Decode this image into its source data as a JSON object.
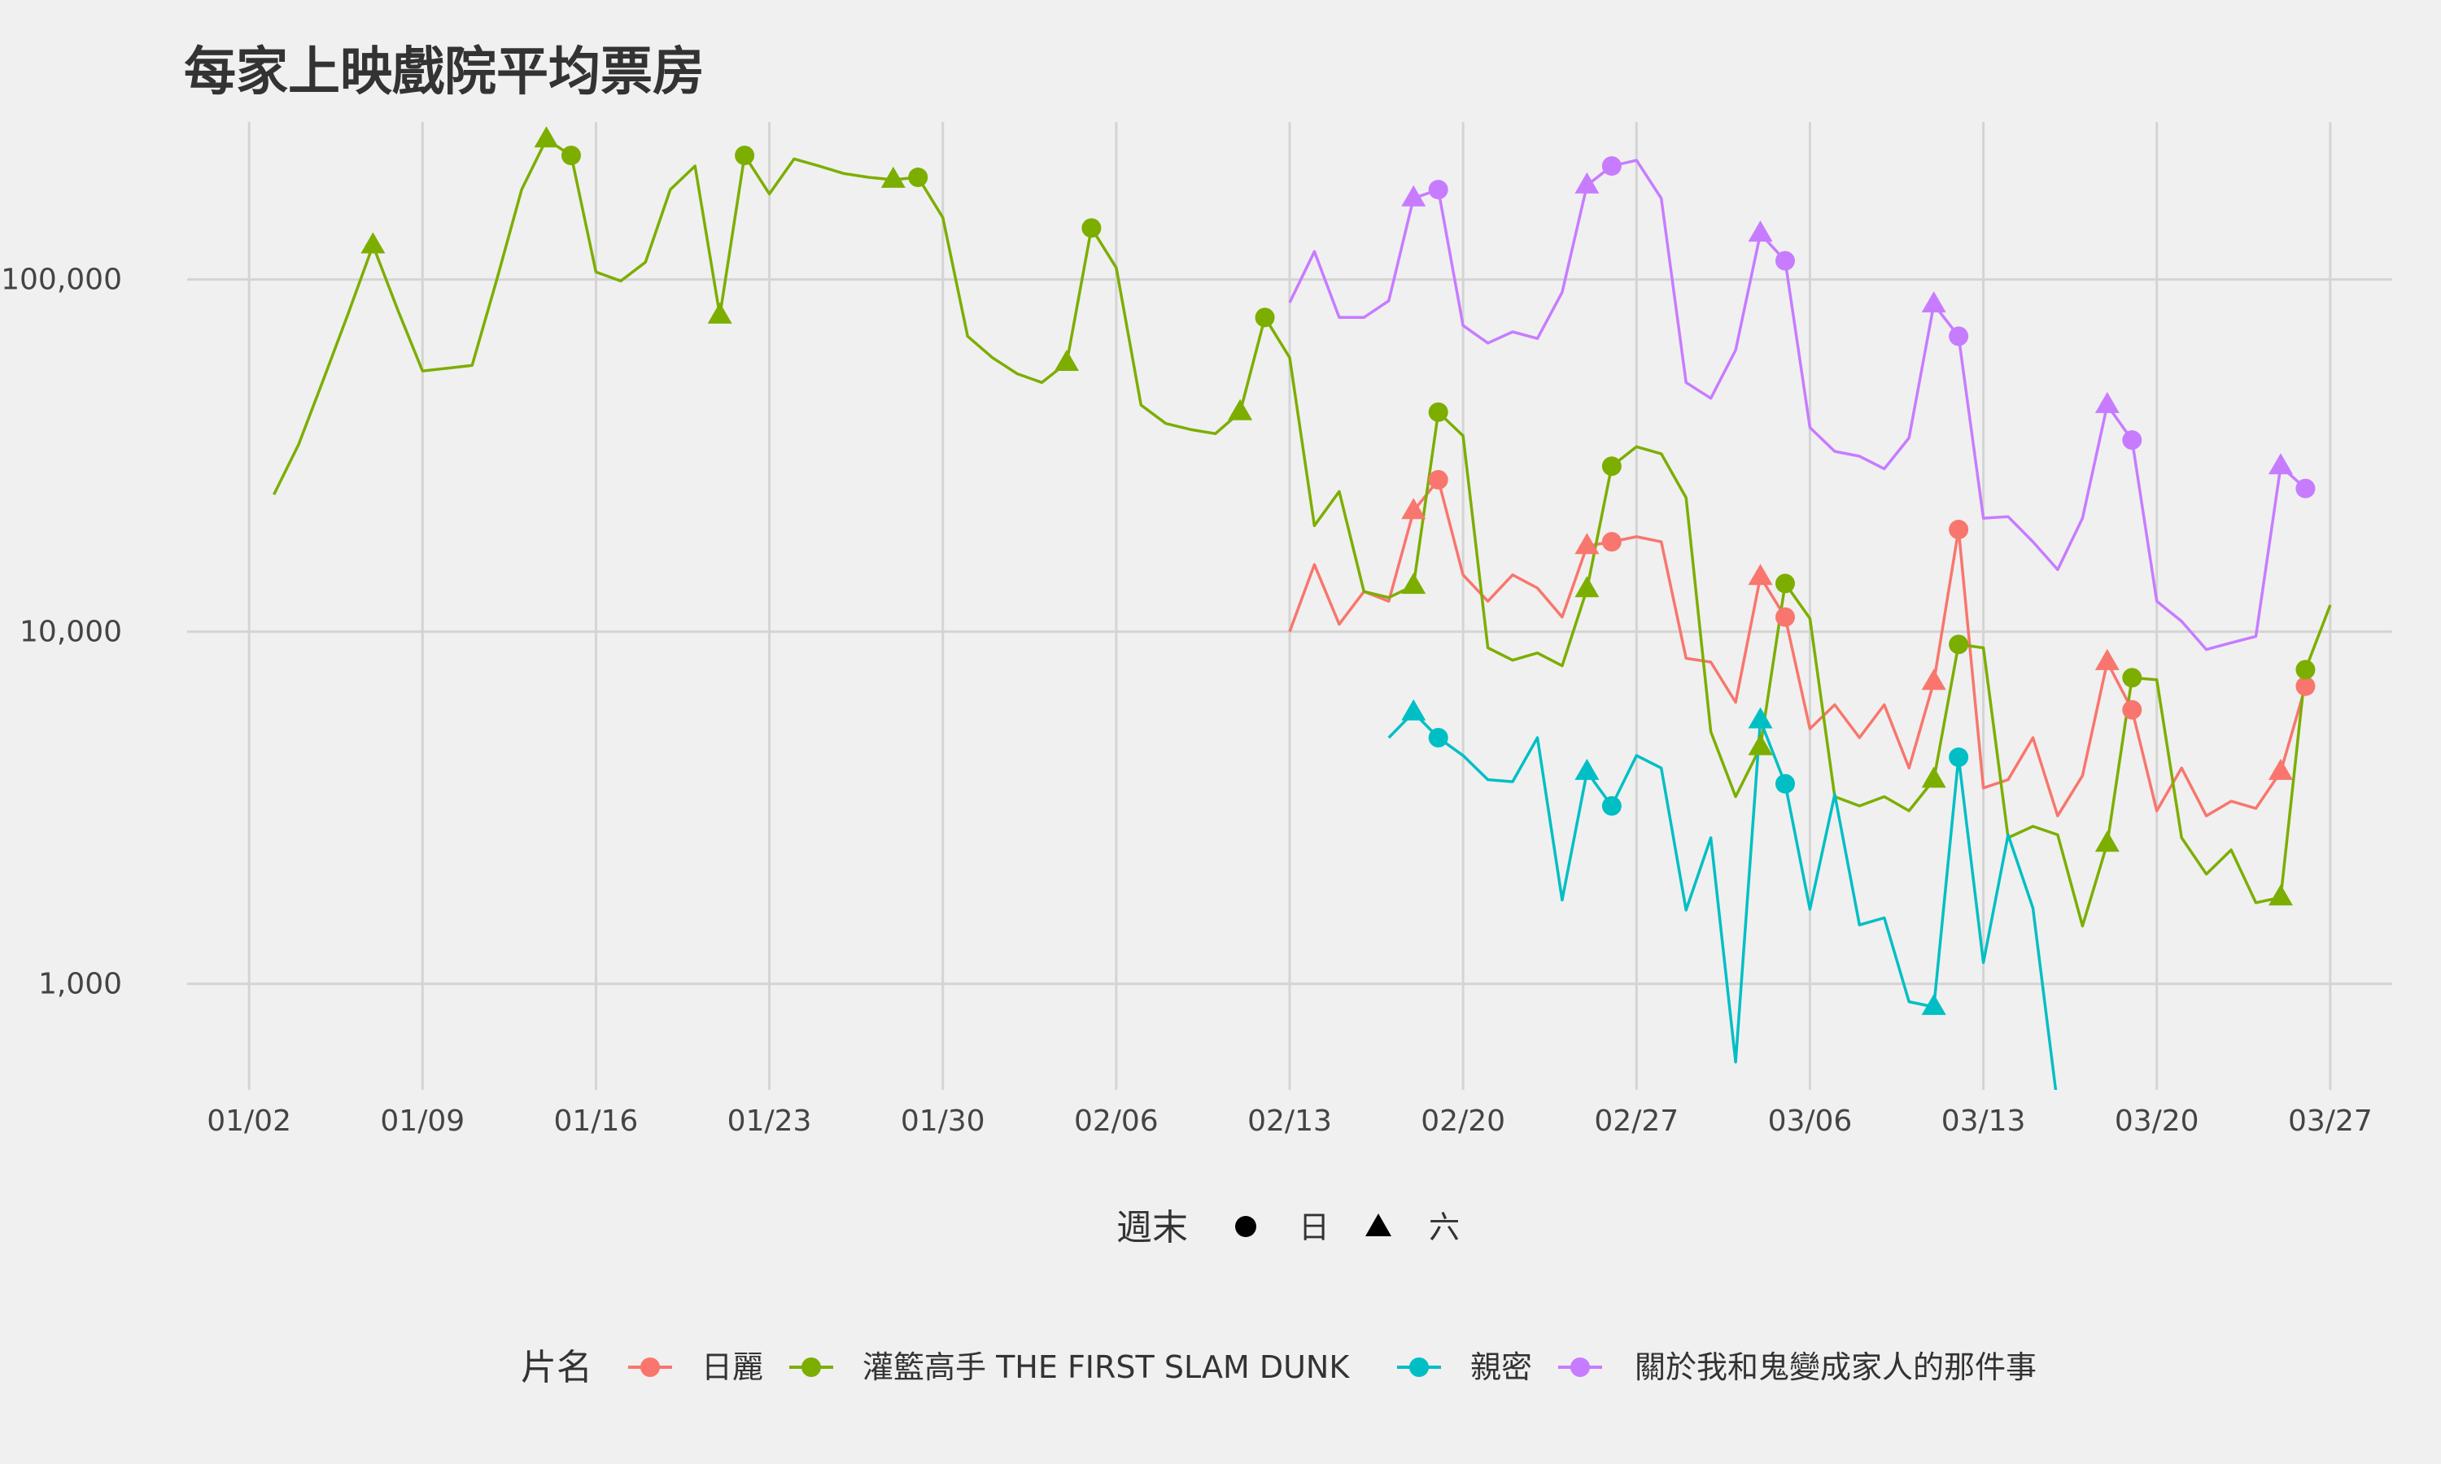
{
  "chart_data": {
    "type": "line",
    "title": "每家上映戲院平均票房",
    "xlabel": "",
    "ylabel": "",
    "y_scale": "log10",
    "ylim": [
      500,
      280000
    ],
    "yticks": [
      1000,
      10000,
      100000
    ],
    "ytick_labels": [
      "1,000",
      "10,000",
      "100,000"
    ],
    "x_tick_days": [
      0,
      7,
      14,
      21,
      28,
      35,
      42,
      49,
      56,
      63,
      70,
      77,
      84
    ],
    "x_tick_labels": [
      "01/02",
      "01/09",
      "01/16",
      "01/23",
      "01/30",
      "02/06",
      "02/13",
      "02/20",
      "02/27",
      "03/06",
      "03/13",
      "03/20",
      "03/27"
    ],
    "xlim": [
      -2.5,
      86.5
    ],
    "grid": true,
    "shape_legend": {
      "title": "週末",
      "items": [
        {
          "shape": "circle",
          "label": "日"
        },
        {
          "shape": "triangle",
          "label": "六"
        }
      ]
    },
    "color_legend_title": "片名",
    "series": [
      {
        "name": "日麗",
        "color": "#F8766D",
        "day_start": 42,
        "values": [
          10000,
          15500,
          10500,
          13000,
          12200,
          22000,
          27000,
          14500,
          12200,
          14500,
          13300,
          11000,
          17500,
          18000,
          18600,
          18000,
          8400,
          8200,
          6300,
          14300,
          11000,
          5300,
          6200,
          5000,
          6200,
          4100,
          7200,
          19500,
          3600,
          3800,
          5000,
          3000,
          3900,
          8200,
          6000,
          3100,
          4100,
          3000,
          3300,
          3150,
          4000,
          7000
        ],
        "markers": [
          {
            "day": 47,
            "shape": "triangle"
          },
          {
            "day": 48,
            "shape": "circle"
          },
          {
            "day": 54,
            "shape": "triangle"
          },
          {
            "day": 55,
            "shape": "circle"
          },
          {
            "day": 61,
            "shape": "triangle"
          },
          {
            "day": 62,
            "shape": "circle"
          },
          {
            "day": 68,
            "shape": "triangle"
          },
          {
            "day": 69,
            "shape": "circle"
          },
          {
            "day": 75,
            "shape": "triangle"
          },
          {
            "day": 76,
            "shape": "circle"
          },
          {
            "day": 82,
            "shape": "triangle"
          },
          {
            "day": 83,
            "shape": "circle"
          }
        ]
      },
      {
        "name": "灌籃高手 THE FIRST SLAM DUNK",
        "color": "#7CAE00",
        "day_start": 1,
        "values": [
          24500,
          34000,
          52000,
          80000,
          125000,
          82000,
          55000,
          56000,
          57000,
          100000,
          180000,
          250000,
          225000,
          105000,
          99000,
          112000,
          180000,
          210000,
          79000,
          225000,
          175000,
          220000,
          210000,
          200000,
          195000,
          192000,
          195000,
          150000,
          69000,
          60000,
          54000,
          51000,
          58000,
          140000,
          108000,
          44000,
          39000,
          37500,
          36500,
          42000,
          78000,
          60000,
          20000,
          25000,
          13000,
          12500,
          13500,
          42000,
          36000,
          9000,
          8300,
          8700,
          8000,
          13200,
          29500,
          33500,
          32000,
          24000,
          5200,
          3400,
          4700,
          13700,
          10900,
          3400,
          3200,
          3400,
          3100,
          3800,
          9200,
          9000,
          2600,
          2800,
          2650,
          1460,
          2500,
          7400,
          7300,
          2600,
          2050,
          2400,
          1700,
          1760,
          7800,
          11900
        ],
        "markers": [
          {
            "day": 5,
            "shape": "triangle"
          },
          {
            "day": 12,
            "shape": "triangle"
          },
          {
            "day": 13,
            "shape": "circle"
          },
          {
            "day": 19,
            "shape": "triangle"
          },
          {
            "day": 20,
            "shape": "circle"
          },
          {
            "day": 26,
            "shape": "triangle"
          },
          {
            "day": 27,
            "shape": "circle"
          },
          {
            "day": 33,
            "shape": "triangle"
          },
          {
            "day": 34,
            "shape": "circle"
          },
          {
            "day": 40,
            "shape": "triangle"
          },
          {
            "day": 41,
            "shape": "circle"
          },
          {
            "day": 47,
            "shape": "triangle"
          },
          {
            "day": 48,
            "shape": "circle"
          },
          {
            "day": 54,
            "shape": "triangle"
          },
          {
            "day": 55,
            "shape": "circle"
          },
          {
            "day": 61,
            "shape": "triangle"
          },
          {
            "day": 62,
            "shape": "circle"
          },
          {
            "day": 68,
            "shape": "triangle"
          },
          {
            "day": 69,
            "shape": "circle"
          },
          {
            "day": 75,
            "shape": "triangle"
          },
          {
            "day": 76,
            "shape": "circle"
          },
          {
            "day": 82,
            "shape": "triangle"
          },
          {
            "day": 83,
            "shape": "circle"
          }
        ]
      },
      {
        "name": "親密",
        "color": "#00BFC4",
        "day_start": 46,
        "values": [
          5000,
          5900,
          5000,
          4450,
          3800,
          3750,
          5000,
          1730,
          4000,
          3200,
          4450,
          4100,
          1620,
          2600,
          600,
          5600,
          3700,
          1630,
          3450,
          1470,
          1540,
          890,
          860,
          4400,
          1150,
          2650,
          1640,
          450
        ],
        "markers": [
          {
            "day": 47,
            "shape": "triangle"
          },
          {
            "day": 48,
            "shape": "circle"
          },
          {
            "day": 54,
            "shape": "triangle"
          },
          {
            "day": 55,
            "shape": "circle"
          },
          {
            "day": 61,
            "shape": "triangle"
          },
          {
            "day": 62,
            "shape": "circle"
          },
          {
            "day": 68,
            "shape": "triangle"
          },
          {
            "day": 69,
            "shape": "circle"
          }
        ]
      },
      {
        "name": "關於我和鬼變成家人的那件事",
        "color": "#C77CFF",
        "day_start": 42,
        "values": [
          86000,
          120000,
          78000,
          78000,
          87000,
          170000,
          180000,
          74000,
          66000,
          71000,
          68000,
          92000,
          185000,
          210000,
          218000,
          170000,
          51000,
          46000,
          63000,
          135000,
          113000,
          38000,
          32500,
          31500,
          29000,
          35500,
          85000,
          69000,
          21000,
          21200,
          18000,
          15000,
          21000,
          44000,
          35000,
          12200,
          10700,
          8900,
          9300,
          9700,
          29500,
          25500
        ],
        "markers": [
          {
            "day": 47,
            "shape": "triangle"
          },
          {
            "day": 48,
            "shape": "circle"
          },
          {
            "day": 54,
            "shape": "triangle"
          },
          {
            "day": 55,
            "shape": "circle"
          },
          {
            "day": 61,
            "shape": "triangle"
          },
          {
            "day": 62,
            "shape": "circle"
          },
          {
            "day": 68,
            "shape": "triangle"
          },
          {
            "day": 69,
            "shape": "circle"
          },
          {
            "day": 75,
            "shape": "triangle"
          },
          {
            "day": 76,
            "shape": "circle"
          },
          {
            "day": 82,
            "shape": "triangle"
          },
          {
            "day": 83,
            "shape": "circle"
          }
        ]
      }
    ]
  }
}
